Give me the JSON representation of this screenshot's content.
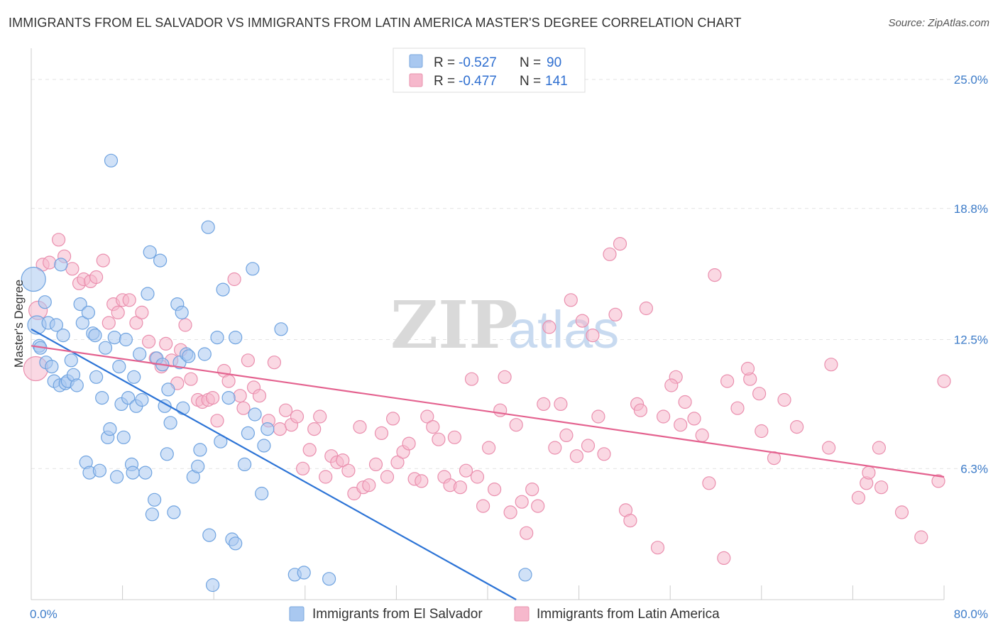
{
  "title": "IMMIGRANTS FROM EL SALVADOR VS IMMIGRANTS FROM LATIN AMERICA MASTER'S DEGREE CORRELATION CHART",
  "source": "Source: ZipAtlas.com",
  "watermark": {
    "zip": "ZIP",
    "atlas": "atlas"
  },
  "legend": {
    "rows": [
      {
        "r_label": "R =",
        "r_value": "-0.527",
        "n_label": "N =",
        "n_value": "90",
        "color": "#a9c8f0"
      },
      {
        "r_label": "R =",
        "r_value": "-0.477",
        "n_label": "N =",
        "n_value": "141",
        "color": "#f6b8cc"
      }
    ]
  },
  "bottom_legend": [
    {
      "label": "Immigrants from El Salvador",
      "color": "#a9c8f0"
    },
    {
      "label": "Immigrants from Latin America",
      "color": "#f6b8cc"
    }
  ],
  "chart_data": {
    "type": "scatter",
    "title": "IMMIGRANTS FROM EL SALVADOR VS IMMIGRANTS FROM LATIN AMERICA MASTER'S DEGREE CORRELATION CHART",
    "xlabel": "",
    "ylabel": "Master's Degree",
    "xlim": [
      0,
      80
    ],
    "ylim": [
      0,
      26.5
    ],
    "x_tick_labels": [
      {
        "value": 0,
        "label": "0.0%"
      },
      {
        "value": 80,
        "label": "80.0%"
      }
    ],
    "y_tick_labels": [
      {
        "value": 6.3,
        "label": "6.3%"
      },
      {
        "value": 12.5,
        "label": "12.5%"
      },
      {
        "value": 18.8,
        "label": "18.8%"
      },
      {
        "value": 25.0,
        "label": "25.0%"
      }
    ],
    "grid": true,
    "legend_position": "top-center",
    "series": [
      {
        "name": "Immigrants from El Salvador",
        "color": "#6fa3e0",
        "fill": "#a9c8f0",
        "trend": {
          "x": [
            0,
            42.5
          ],
          "y": [
            13.0,
            0
          ]
        },
        "points": [
          [
            0.2,
            15.4
          ],
          [
            0.5,
            13.2
          ],
          [
            0.7,
            12.2
          ],
          [
            0.8,
            12.1
          ],
          [
            1.2,
            14.3
          ],
          [
            1.3,
            11.4
          ],
          [
            1.5,
            13.3
          ],
          [
            1.8,
            11.2
          ],
          [
            2.0,
            10.5
          ],
          [
            2.2,
            13.2
          ],
          [
            2.5,
            10.3
          ],
          [
            2.8,
            12.7
          ],
          [
            2.6,
            16.1
          ],
          [
            3.0,
            10.4
          ],
          [
            3.2,
            10.5
          ],
          [
            3.5,
            11.5
          ],
          [
            3.7,
            10.8
          ],
          [
            4.0,
            10.3
          ],
          [
            4.3,
            14.2
          ],
          [
            4.5,
            13.3
          ],
          [
            4.8,
            6.6
          ],
          [
            5.0,
            13.8
          ],
          [
            5.1,
            6.1
          ],
          [
            5.4,
            12.8
          ],
          [
            5.6,
            12.7
          ],
          [
            5.7,
            10.7
          ],
          [
            6.0,
            6.2
          ],
          [
            6.2,
            9.7
          ],
          [
            6.5,
            12.1
          ],
          [
            6.7,
            7.8
          ],
          [
            6.9,
            8.2
          ],
          [
            7.0,
            21.1
          ],
          [
            7.3,
            12.6
          ],
          [
            7.5,
            5.9
          ],
          [
            7.7,
            11.2
          ],
          [
            7.9,
            9.4
          ],
          [
            8.1,
            7.8
          ],
          [
            8.3,
            12.5
          ],
          [
            8.5,
            9.7
          ],
          [
            8.8,
            6.5
          ],
          [
            8.9,
            6.1
          ],
          [
            9.0,
            10.7
          ],
          [
            9.2,
            9.3
          ],
          [
            9.5,
            11.8
          ],
          [
            9.7,
            9.6
          ],
          [
            10.0,
            6.1
          ],
          [
            10.2,
            14.7
          ],
          [
            10.4,
            16.7
          ],
          [
            10.6,
            4.1
          ],
          [
            10.8,
            4.8
          ],
          [
            11.0,
            11.6
          ],
          [
            11.3,
            16.3
          ],
          [
            11.5,
            11.3
          ],
          [
            11.7,
            9.3
          ],
          [
            11.9,
            7.0
          ],
          [
            12.0,
            10.1
          ],
          [
            12.2,
            8.5
          ],
          [
            12.5,
            4.2
          ],
          [
            12.8,
            14.2
          ],
          [
            13.0,
            11.4
          ],
          [
            13.2,
            13.8
          ],
          [
            13.3,
            9.2
          ],
          [
            13.6,
            11.8
          ],
          [
            13.8,
            11.7
          ],
          [
            14.2,
            5.9
          ],
          [
            14.6,
            6.4
          ],
          [
            14.8,
            7.2
          ],
          [
            15.2,
            11.8
          ],
          [
            15.5,
            17.9
          ],
          [
            15.6,
            3.1
          ],
          [
            15.9,
            0.7
          ],
          [
            16.3,
            12.6
          ],
          [
            16.6,
            7.6
          ],
          [
            16.8,
            14.9
          ],
          [
            17.3,
            9.7
          ],
          [
            17.6,
            2.9
          ],
          [
            17.9,
            2.7
          ],
          [
            18.7,
            6.5
          ],
          [
            19.0,
            8.0
          ],
          [
            19.4,
            15.9
          ],
          [
            19.6,
            8.9
          ],
          [
            20.2,
            5.1
          ],
          [
            20.7,
            8.2
          ],
          [
            20.4,
            7.4
          ],
          [
            23.1,
            1.2
          ],
          [
            23.9,
            1.3
          ],
          [
            26.1,
            1.0
          ],
          [
            43.3,
            1.2
          ],
          [
            21.9,
            13.0
          ],
          [
            17.9,
            12.6
          ]
        ],
        "radius_large": [
          [
            0.2,
            15.4
          ],
          [
            0.5,
            13.2
          ]
        ]
      },
      {
        "name": "Immigrants from Latin America",
        "color": "#ea8fae",
        "fill": "#f6b8cc",
        "trend": {
          "x": [
            0,
            80
          ],
          "y": [
            12.2,
            5.9
          ]
        },
        "points": [
          [
            0.4,
            11.1
          ],
          [
            0.6,
            13.9
          ],
          [
            1.0,
            16.1
          ],
          [
            1.6,
            16.2
          ],
          [
            2.4,
            17.3
          ],
          [
            2.9,
            16.5
          ],
          [
            3.6,
            15.9
          ],
          [
            4.2,
            15.2
          ],
          [
            4.6,
            15.4
          ],
          [
            5.2,
            15.3
          ],
          [
            5.7,
            15.5
          ],
          [
            6.3,
            16.3
          ],
          [
            6.8,
            13.3
          ],
          [
            7.2,
            14.2
          ],
          [
            7.6,
            13.8
          ],
          [
            8.0,
            14.4
          ],
          [
            8.6,
            14.4
          ],
          [
            9.2,
            13.3
          ],
          [
            9.7,
            13.8
          ],
          [
            10.3,
            12.4
          ],
          [
            10.9,
            11.6
          ],
          [
            11.4,
            11.2
          ],
          [
            11.8,
            12.3
          ],
          [
            12.3,
            11.5
          ],
          [
            12.8,
            10.4
          ],
          [
            13.1,
            12.0
          ],
          [
            13.5,
            13.2
          ],
          [
            14.0,
            10.6
          ],
          [
            14.6,
            9.6
          ],
          [
            15.0,
            9.5
          ],
          [
            15.5,
            9.6
          ],
          [
            15.9,
            9.7
          ],
          [
            16.3,
            8.6
          ],
          [
            16.9,
            11.0
          ],
          [
            17.3,
            10.5
          ],
          [
            17.8,
            15.4
          ],
          [
            18.3,
            9.8
          ],
          [
            18.6,
            9.2
          ],
          [
            19.0,
            11.5
          ],
          [
            19.5,
            10.2
          ],
          [
            20.0,
            9.8
          ],
          [
            20.8,
            8.6
          ],
          [
            21.3,
            11.4
          ],
          [
            21.8,
            8.2
          ],
          [
            22.3,
            9.1
          ],
          [
            22.8,
            8.4
          ],
          [
            23.3,
            8.8
          ],
          [
            23.8,
            6.3
          ],
          [
            24.4,
            7.2
          ],
          [
            24.8,
            8.2
          ],
          [
            25.3,
            8.8
          ],
          [
            25.8,
            5.9
          ],
          [
            26.3,
            6.9
          ],
          [
            26.8,
            6.6
          ],
          [
            27.3,
            6.7
          ],
          [
            27.8,
            6.2
          ],
          [
            28.3,
            5.1
          ],
          [
            28.8,
            8.3
          ],
          [
            29.1,
            5.4
          ],
          [
            29.6,
            5.5
          ],
          [
            30.2,
            6.5
          ],
          [
            30.7,
            8.0
          ],
          [
            31.2,
            5.9
          ],
          [
            31.7,
            8.7
          ],
          [
            32.1,
            6.6
          ],
          [
            32.6,
            7.1
          ],
          [
            33.1,
            7.5
          ],
          [
            33.6,
            5.8
          ],
          [
            34.2,
            5.7
          ],
          [
            34.7,
            8.8
          ],
          [
            35.2,
            8.3
          ],
          [
            35.7,
            7.7
          ],
          [
            36.2,
            5.9
          ],
          [
            36.7,
            5.5
          ],
          [
            37.1,
            7.8
          ],
          [
            37.6,
            5.4
          ],
          [
            38.1,
            6.2
          ],
          [
            38.6,
            10.6
          ],
          [
            39.1,
            5.9
          ],
          [
            39.6,
            4.5
          ],
          [
            40.1,
            7.3
          ],
          [
            40.6,
            5.3
          ],
          [
            41.1,
            9.1
          ],
          [
            41.5,
            10.7
          ],
          [
            42.0,
            4.2
          ],
          [
            42.5,
            8.4
          ],
          [
            43.0,
            4.7
          ],
          [
            43.4,
            3.2
          ],
          [
            43.9,
            5.3
          ],
          [
            44.4,
            4.5
          ],
          [
            44.9,
            9.4
          ],
          [
            45.4,
            13.1
          ],
          [
            45.9,
            7.3
          ],
          [
            46.4,
            9.4
          ],
          [
            46.9,
            7.9
          ],
          [
            47.3,
            14.4
          ],
          [
            47.8,
            6.9
          ],
          [
            48.3,
            13.4
          ],
          [
            48.8,
            7.4
          ],
          [
            49.2,
            12.7
          ],
          [
            49.7,
            8.8
          ],
          [
            50.2,
            7.0
          ],
          [
            50.7,
            16.6
          ],
          [
            51.2,
            13.7
          ],
          [
            51.6,
            17.1
          ],
          [
            52.1,
            4.3
          ],
          [
            52.5,
            3.8
          ],
          [
            53.1,
            9.4
          ],
          [
            53.4,
            9.1
          ],
          [
            53.9,
            14.0
          ],
          [
            54.9,
            2.5
          ],
          [
            55.4,
            8.8
          ],
          [
            56.5,
            10.7
          ],
          [
            56.9,
            8.4
          ],
          [
            57.3,
            9.5
          ],
          [
            58.1,
            8.7
          ],
          [
            59.4,
            5.6
          ],
          [
            59.9,
            15.6
          ],
          [
            60.7,
            2.0
          ],
          [
            61.0,
            10.5
          ],
          [
            63.0,
            10.6
          ],
          [
            64.0,
            8.1
          ],
          [
            65.1,
            6.8
          ],
          [
            66.0,
            9.6
          ],
          [
            67.1,
            8.3
          ],
          [
            69.9,
            7.3
          ],
          [
            70.1,
            11.3
          ],
          [
            72.5,
            4.9
          ],
          [
            73.2,
            5.6
          ],
          [
            73.4,
            6.1
          ],
          [
            74.3,
            7.3
          ],
          [
            74.5,
            5.4
          ],
          [
            76.3,
            4.2
          ],
          [
            78.0,
            3.0
          ],
          [
            79.5,
            5.7
          ],
          [
            80.0,
            10.5
          ],
          [
            56.1,
            10.3
          ],
          [
            63.8,
            9.9
          ],
          [
            58.8,
            7.9
          ],
          [
            62.8,
            11.1
          ],
          [
            61.9,
            9.2
          ]
        ],
        "radius_large": [
          [
            0.4,
            11.1
          ],
          [
            0.6,
            13.9
          ]
        ]
      }
    ]
  }
}
